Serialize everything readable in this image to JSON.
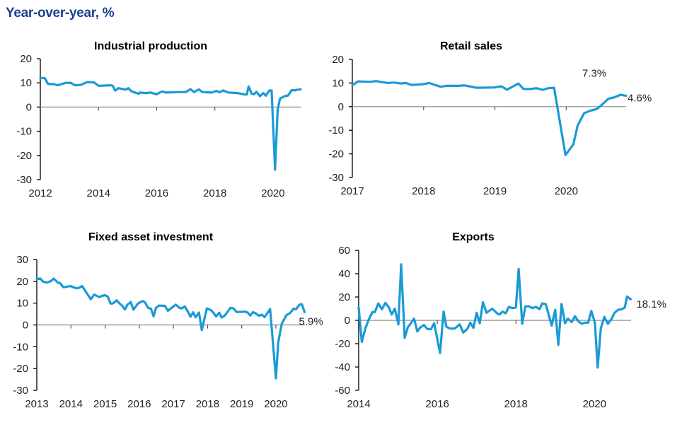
{
  "header": {
    "title": "Year-over-year, %"
  },
  "colors": {
    "line": "#1a9ad6",
    "title": "#1c3f94",
    "zero_line": "#888888",
    "axis": "#000000"
  },
  "chart_data": [
    {
      "type": "line",
      "title": "Industrial production",
      "xlim": [
        2012,
        2020.95
      ],
      "ylim": [
        -30,
        20
      ],
      "xticks": [
        2012,
        2014,
        2016,
        2018,
        2020
      ],
      "yticks": [
        20,
        10,
        0,
        -10,
        -20,
        -30
      ],
      "annotation": "7.3%",
      "series": [
        {
          "points": [
            [
              2012.0,
              12
            ],
            [
              2012.15,
              12
            ],
            [
              2012.27,
              9.5
            ],
            [
              2012.47,
              9.5
            ],
            [
              2012.59,
              9
            ],
            [
              2012.87,
              10
            ],
            [
              2013.04,
              10
            ],
            [
              2013.2,
              9
            ],
            [
              2013.4,
              9.2
            ],
            [
              2013.6,
              10.3
            ],
            [
              2013.84,
              10.2
            ],
            [
              2014.01,
              8.8
            ],
            [
              2014.41,
              9
            ],
            [
              2014.49,
              8.8
            ],
            [
              2014.57,
              6.8
            ],
            [
              2014.69,
              7.8
            ],
            [
              2014.82,
              7.5
            ],
            [
              2014.94,
              7.2
            ],
            [
              2015.02,
              7.8
            ],
            [
              2015.14,
              6.5
            ],
            [
              2015.38,
              5.5
            ],
            [
              2015.42,
              6
            ],
            [
              2015.62,
              5.8
            ],
            [
              2015.79,
              6
            ],
            [
              2015.99,
              5.3
            ],
            [
              2016.19,
              6.5
            ],
            [
              2016.31,
              6
            ],
            [
              2016.76,
              6.2
            ],
            [
              2017.0,
              6.2
            ],
            [
              2017.16,
              7.4
            ],
            [
              2017.28,
              6.2
            ],
            [
              2017.45,
              7.3
            ],
            [
              2017.57,
              6.2
            ],
            [
              2017.89,
              6.0
            ],
            [
              2018.05,
              6.7
            ],
            [
              2018.17,
              6.1
            ],
            [
              2018.29,
              6.9
            ],
            [
              2018.46,
              6
            ],
            [
              2018.78,
              5.8
            ],
            [
              2019.02,
              5.2
            ],
            [
              2019.1,
              5.2
            ],
            [
              2019.16,
              8.5
            ],
            [
              2019.27,
              5.5
            ],
            [
              2019.35,
              5.3
            ],
            [
              2019.43,
              6.3
            ],
            [
              2019.55,
              4.5
            ],
            [
              2019.67,
              5.8
            ],
            [
              2019.75,
              4.7
            ],
            [
              2019.87,
              6.8
            ],
            [
              2019.95,
              6.9
            ],
            [
              2020.07,
              -25.9
            ],
            [
              2020.16,
              -1
            ],
            [
              2020.24,
              3.5
            ],
            [
              2020.4,
              4.5
            ],
            [
              2020.52,
              4.8
            ],
            [
              2020.64,
              7
            ],
            [
              2020.76,
              6.9
            ],
            [
              2020.84,
              7.2
            ],
            [
              2020.95,
              7.3
            ]
          ]
        }
      ]
    },
    {
      "type": "line",
      "title": "Retail sales",
      "xlim": [
        2017,
        2020.84
      ],
      "ylim": [
        -30,
        20
      ],
      "xticks": [
        2017,
        2018,
        2019,
        2020
      ],
      "yticks": [
        20,
        10,
        0,
        -10,
        -20,
        -30
      ],
      "annotation": "4.6%",
      "series": [
        {
          "points": [
            [
              2017.0,
              9
            ],
            [
              2017.08,
              10.7
            ],
            [
              2017.25,
              10.5
            ],
            [
              2017.33,
              10.8
            ],
            [
              2017.5,
              10
            ],
            [
              2017.58,
              10.2
            ],
            [
              2017.68,
              9.8
            ],
            [
              2017.75,
              10
            ],
            [
              2017.83,
              9.2
            ],
            [
              2017.99,
              9.5
            ],
            [
              2018.08,
              10
            ],
            [
              2018.16,
              9.2
            ],
            [
              2018.24,
              8.4
            ],
            [
              2018.32,
              8.8
            ],
            [
              2018.49,
              8.8
            ],
            [
              2018.57,
              9
            ],
            [
              2018.74,
              8
            ],
            [
              2018.99,
              8.1
            ],
            [
              2019.09,
              8.6
            ],
            [
              2019.17,
              7.2
            ],
            [
              2019.33,
              9.8
            ],
            [
              2019.4,
              7.5
            ],
            [
              2019.5,
              7.5
            ],
            [
              2019.58,
              7.8
            ],
            [
              2019.67,
              7.1
            ],
            [
              2019.75,
              7.8
            ],
            [
              2019.83,
              8
            ],
            [
              2019.99,
              -20.5
            ],
            [
              2020.1,
              -16
            ],
            [
              2020.16,
              -8
            ],
            [
              2020.25,
              -2.8
            ],
            [
              2020.33,
              -1.8
            ],
            [
              2020.43,
              -1
            ],
            [
              2020.49,
              0.5
            ],
            [
              2020.59,
              3.3
            ],
            [
              2020.68,
              4
            ],
            [
              2020.76,
              5
            ],
            [
              2020.84,
              4.6
            ]
          ]
        }
      ]
    },
    {
      "type": "line",
      "title": "Fixed asset investment",
      "xlim": [
        2013,
        2020.85
      ],
      "ylim": [
        -30,
        30
      ],
      "xticks": [
        2013,
        2014,
        2015,
        2016,
        2017,
        2018,
        2019,
        2020
      ],
      "yticks": [
        30,
        20,
        10,
        0,
        -10,
        -20,
        -30
      ],
      "annotation": "5.9%",
      "series": [
        {
          "points": [
            [
              2013.0,
              21
            ],
            [
              2013.1,
              21.3
            ],
            [
              2013.19,
              19.8
            ],
            [
              2013.3,
              19.5
            ],
            [
              2013.4,
              20
            ],
            [
              2013.5,
              21.2
            ],
            [
              2013.61,
              19.5
            ],
            [
              2013.68,
              19.2
            ],
            [
              2013.78,
              17.3
            ],
            [
              2013.99,
              17.8
            ],
            [
              2014.16,
              16.8
            ],
            [
              2014.23,
              17
            ],
            [
              2014.33,
              17.8
            ],
            [
              2014.58,
              11.8
            ],
            [
              2014.68,
              13.9
            ],
            [
              2014.82,
              12.8
            ],
            [
              2014.99,
              13.7
            ],
            [
              2015.08,
              13
            ],
            [
              2015.16,
              9.8
            ],
            [
              2015.23,
              9.9
            ],
            [
              2015.34,
              11.3
            ],
            [
              2015.44,
              9.6
            ],
            [
              2015.49,
              9.0
            ],
            [
              2015.58,
              7.1
            ],
            [
              2015.65,
              9.2
            ],
            [
              2015.75,
              10.5
            ],
            [
              2015.83,
              7.0
            ],
            [
              2015.96,
              9.8
            ],
            [
              2016.1,
              11.0
            ],
            [
              2016.17,
              10.3
            ],
            [
              2016.26,
              7.8
            ],
            [
              2016.34,
              7.5
            ],
            [
              2016.42,
              4.0
            ],
            [
              2016.49,
              7.8
            ],
            [
              2016.58,
              8.9
            ],
            [
              2016.68,
              8.8
            ],
            [
              2016.75,
              8.8
            ],
            [
              2016.84,
              6.5
            ],
            [
              2016.96,
              8.0
            ],
            [
              2017.07,
              9.3
            ],
            [
              2017.18,
              7.8
            ],
            [
              2017.24,
              7.6
            ],
            [
              2017.33,
              8.5
            ],
            [
              2017.41,
              6.5
            ],
            [
              2017.5,
              3.8
            ],
            [
              2017.58,
              5.8
            ],
            [
              2017.65,
              3.5
            ],
            [
              2017.75,
              5.7
            ],
            [
              2017.83,
              -2.4
            ],
            [
              2017.98,
              7.6
            ],
            [
              2018.09,
              6.9
            ],
            [
              2018.17,
              5.6
            ],
            [
              2018.25,
              3.9
            ],
            [
              2018.34,
              5.6
            ],
            [
              2018.41,
              3.4
            ],
            [
              2018.5,
              4.2
            ],
            [
              2018.67,
              7.8
            ],
            [
              2018.76,
              7.6
            ],
            [
              2018.85,
              5.9
            ],
            [
              2019.0,
              6.0
            ],
            [
              2019.1,
              6.1
            ],
            [
              2019.17,
              5.7
            ],
            [
              2019.25,
              4.3
            ],
            [
              2019.33,
              5.9
            ],
            [
              2019.41,
              5.3
            ],
            [
              2019.5,
              4.2
            ],
            [
              2019.59,
              4.7
            ],
            [
              2019.67,
              3.6
            ],
            [
              2019.83,
              7.3
            ],
            [
              2020.0,
              -24.5
            ],
            [
              2020.07,
              -8
            ],
            [
              2020.17,
              0.5
            ],
            [
              2020.31,
              4.5
            ],
            [
              2020.42,
              5.5
            ],
            [
              2020.52,
              7.5
            ],
            [
              2020.59,
              7.2
            ],
            [
              2020.69,
              9.3
            ],
            [
              2020.76,
              9.5
            ],
            [
              2020.84,
              5.9
            ]
          ]
        }
      ]
    },
    {
      "type": "line",
      "title": "Exports",
      "xlim": [
        2014,
        2020.93
      ],
      "ylim": [
        -60,
        60
      ],
      "xticks": [
        2014,
        2016,
        2018,
        2020
      ],
      "yticks": [
        60,
        40,
        20,
        0,
        -20,
        -40,
        -60
      ],
      "annotation": "18.1%",
      "series": [
        {
          "points": [
            [
              2014.0,
              11
            ],
            [
              2014.08,
              -18.5
            ],
            [
              2014.17,
              -7
            ],
            [
              2014.26,
              1
            ],
            [
              2014.35,
              7
            ],
            [
              2014.41,
              7
            ],
            [
              2014.5,
              14.5
            ],
            [
              2014.59,
              9.5
            ],
            [
              2014.68,
              15
            ],
            [
              2014.77,
              11
            ],
            [
              2014.84,
              5
            ],
            [
              2014.92,
              10
            ],
            [
              2015.01,
              -3.5
            ],
            [
              2015.08,
              48
            ],
            [
              2015.17,
              -15
            ],
            [
              2015.25,
              -6
            ],
            [
              2015.32,
              -3
            ],
            [
              2015.41,
              1.5
            ],
            [
              2015.49,
              -9.5
            ],
            [
              2015.57,
              -6
            ],
            [
              2015.66,
              -4
            ],
            [
              2015.75,
              -7.5
            ],
            [
              2015.84,
              -7.5
            ],
            [
              2015.92,
              -2.5
            ],
            [
              2016.07,
              -28
            ],
            [
              2016.16,
              7.5
            ],
            [
              2016.23,
              -5.5
            ],
            [
              2016.32,
              -7
            ],
            [
              2016.44,
              -7
            ],
            [
              2016.57,
              -3.5
            ],
            [
              2016.66,
              -10.5
            ],
            [
              2016.76,
              -7.5
            ],
            [
              2016.84,
              -2
            ],
            [
              2016.92,
              -6.5
            ],
            [
              2017.0,
              6.5
            ],
            [
              2017.08,
              -2.5
            ],
            [
              2017.16,
              15.5
            ],
            [
              2017.25,
              6.5
            ],
            [
              2017.4,
              10
            ],
            [
              2017.52,
              6
            ],
            [
              2017.58,
              5
            ],
            [
              2017.66,
              7.5
            ],
            [
              2017.74,
              6
            ],
            [
              2017.82,
              11.5
            ],
            [
              2017.91,
              10.5
            ],
            [
              2018.0,
              11
            ],
            [
              2018.07,
              44
            ],
            [
              2018.16,
              -3
            ],
            [
              2018.24,
              12
            ],
            [
              2018.33,
              12
            ],
            [
              2018.42,
              10.5
            ],
            [
              2018.51,
              11.5
            ],
            [
              2018.6,
              9.5
            ],
            [
              2018.67,
              14.5
            ],
            [
              2018.76,
              14
            ],
            [
              2018.91,
              -4.5
            ],
            [
              2019.0,
              9
            ],
            [
              2019.08,
              -21
            ],
            [
              2019.16,
              14
            ],
            [
              2019.25,
              -2.5
            ],
            [
              2019.32,
              1.5
            ],
            [
              2019.42,
              -1.5
            ],
            [
              2019.5,
              3.5
            ],
            [
              2019.59,
              -1
            ],
            [
              2019.68,
              -3
            ],
            [
              2019.75,
              -2
            ],
            [
              2019.84,
              -2
            ],
            [
              2019.92,
              8
            ],
            [
              2020.01,
              -2
            ],
            [
              2020.08,
              -40.5
            ],
            [
              2020.16,
              -7
            ],
            [
              2020.25,
              3
            ],
            [
              2020.34,
              -3
            ],
            [
              2020.43,
              1
            ],
            [
              2020.51,
              6.5
            ],
            [
              2020.6,
              9
            ],
            [
              2020.69,
              9.5
            ],
            [
              2020.77,
              11
            ],
            [
              2020.83,
              20.5
            ],
            [
              2020.92,
              18.1
            ]
          ]
        }
      ]
    }
  ]
}
